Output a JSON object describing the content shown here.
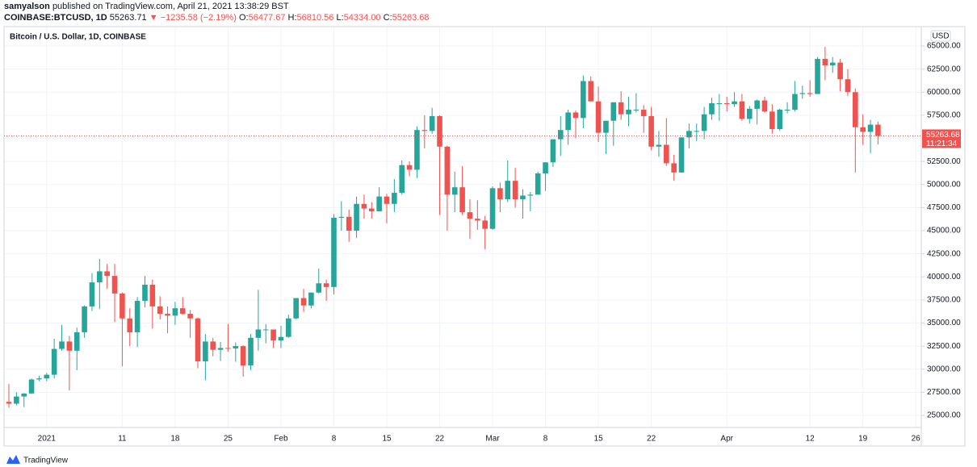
{
  "header": {
    "author": "samyalson",
    "published": "published on TradingView.com, April 21, 2021 13:38:29 BST",
    "symbol": "COINBASE:BTCUSD, 1D",
    "price": "55263.71",
    "change": "▼ −1235.58 (−2.19%)",
    "ohlc": [
      {
        "key": "O:",
        "value": "56477.67"
      },
      {
        "key": "H:",
        "value": "56810.56"
      },
      {
        "key": "L:",
        "value": "54334.00"
      },
      {
        "key": "C:",
        "value": "55263.68"
      }
    ]
  },
  "chart_data": {
    "type": "candlestick",
    "title": "Bitcoin / U.S. Dollar, 1D, COINBASE",
    "currency": "USD",
    "up_color": "#26a69a",
    "down_color": "#ef5350",
    "grid": true,
    "categories": [
      null,
      null,
      null,
      null,
      null,
      "2021",
      null,
      null,
      null,
      null,
      null,
      null,
      null,
      null,
      null,
      "11",
      null,
      null,
      null,
      null,
      null,
      null,
      "18",
      null,
      null,
      null,
      null,
      null,
      null,
      "25",
      null,
      null,
      null,
      null,
      null,
      null,
      "Feb",
      null,
      null,
      null,
      null,
      null,
      null,
      "8",
      null,
      null,
      null,
      null,
      null,
      null,
      "15",
      null,
      null,
      null,
      null,
      null,
      null,
      "22",
      null,
      null,
      null,
      null,
      null,
      null,
      "Mar",
      null,
      null,
      null,
      null,
      null,
      null,
      "8",
      null,
      null,
      null,
      null,
      null,
      null,
      "15",
      null,
      null,
      null,
      null,
      null,
      null,
      "22",
      null,
      null,
      null,
      null,
      null,
      null,
      null,
      null,
      null,
      "Apr",
      null,
      null,
      null,
      null,
      null,
      null,
      null,
      null,
      null,
      null,
      "12",
      null,
      null,
      null,
      null,
      null,
      null,
      "19",
      null,
      null,
      null,
      null,
      null,
      null,
      "26"
    ],
    "open": [
      26470,
      26270,
      27040,
      27370,
      28890,
      29000,
      29400,
      32200,
      33000,
      32000,
      34000,
      36800,
      39400,
      40600,
      40100,
      38200,
      35500,
      34000,
      37400,
      39150,
      36800,
      36000,
      35800,
      36600,
      36000,
      35500,
      30850,
      33000,
      32100,
      32300,
      32250,
      32500,
      30400,
      33400,
      34300,
      34300,
      33100,
      33500,
      35500,
      37700,
      36900,
      38300,
      39300,
      38900,
      46400,
      46500,
      45000,
      47900,
      47400,
      47100,
      48700,
      47900,
      49100,
      52100,
      51600,
      55900,
      55800,
      57400,
      54100,
      48900,
      49700,
      47000,
      46300,
      46100,
      45200,
      49600,
      48400,
      50400,
      48400,
      48800,
      48900,
      51200,
      52400,
      54900,
      55900,
      57800,
      57200,
      61200,
      59000,
      55600,
      56900,
      58900,
      57600,
      58100,
      58100,
      57400,
      54100,
      54300,
      52300,
      51300,
      55100,
      55800,
      55800,
      57600,
      58800,
      58800,
      58700,
      59000,
      57100,
      58200,
      59100,
      57900,
      56000,
      58100,
      58100,
      59800,
      59900,
      59800,
      63600,
      62900,
      63200,
      61400,
      60000,
      56200,
      55700,
      56477.67,
      null,
      null,
      null,
      null,
      null
    ],
    "high": [
      28400,
      27500,
      27400,
      28990,
      29300,
      29600,
      33300,
      34800,
      33600,
      34500,
      36900,
      40400,
      41950,
      41400,
      41400,
      38300,
      36600,
      37800,
      40100,
      39700,
      37900,
      36800,
      37300,
      37800,
      36400,
      35600,
      33800,
      33400,
      32950,
      34900,
      32900,
      32600,
      33800,
      38600,
      34900,
      34300,
      34700,
      35900,
      37700,
      38700,
      38300,
      40900,
      39700,
      46800,
      48200,
      47300,
      48700,
      48900,
      48100,
      49700,
      49000,
      50600,
      52600,
      52500,
      56300,
      57500,
      58300,
      57500,
      54200,
      51400,
      52000,
      48400,
      48300,
      46600,
      49800,
      50200,
      52600,
      51800,
      49500,
      49200,
      51400,
      52400,
      54900,
      57400,
      58100,
      58000,
      61800,
      61700,
      60600,
      56900,
      58900,
      60100,
      59500,
      59900,
      58600,
      58400,
      55800,
      57200,
      53200,
      55100,
      56600,
      56600,
      58400,
      59400,
      59800,
      59500,
      60000,
      59800,
      58500,
      59200,
      59500,
      58700,
      58200,
      58900,
      61200,
      60700,
      61300,
      63800,
      64900,
      63800,
      63600,
      62500,
      60400,
      57600,
      57000,
      56810.56,
      null,
      null,
      null,
      null,
      null
    ],
    "low": [
      25850,
      26100,
      25900,
      27320,
      28700,
      28700,
      29000,
      32000,
      27700,
      29900,
      33400,
      36300,
      36500,
      38700,
      35100,
      30300,
      32500,
      32400,
      36700,
      34400,
      35400,
      33900,
      34800,
      35900,
      33400,
      30100,
      28800,
      31400,
      30900,
      31900,
      30800,
      29200,
      29900,
      32000,
      32800,
      32300,
      32300,
      33400,
      35400,
      36200,
      36600,
      38200,
      37400,
      38100,
      45000,
      43800,
      44200,
      46300,
      46300,
      47100,
      45800,
      47000,
      48900,
      50900,
      50700,
      53900,
      55500,
      46700,
      45000,
      47000,
      46700,
      44100,
      45100,
      43000,
      45100,
      47000,
      48100,
      47500,
      46300,
      47100,
      48900,
      49300,
      51900,
      53100,
      54300,
      55000,
      56100,
      59000,
      54600,
      53300,
      54200,
      57000,
      56300,
      57800,
      55600,
      53700,
      53000,
      52000,
      50400,
      51300,
      53900,
      54700,
      54900,
      57000,
      56900,
      57900,
      58400,
      56900,
      56600,
      56500,
      57800,
      55500,
      55800,
      57700,
      57900,
      59300,
      59500,
      59800,
      61300,
      62100,
      60100,
      59600,
      51300,
      54300,
      53400,
      54334,
      null,
      null,
      null,
      null,
      null
    ],
    "close": [
      26270,
      27040,
      27370,
      28890,
      29000,
      29400,
      32200,
      33000,
      32000,
      34000,
      36800,
      39400,
      40600,
      40100,
      38200,
      35500,
      34000,
      37400,
      39150,
      36800,
      36000,
      35800,
      36600,
      36000,
      35500,
      30850,
      33000,
      32100,
      32300,
      32250,
      32500,
      30400,
      33400,
      34300,
      34300,
      33100,
      33500,
      35500,
      37700,
      36900,
      38300,
      39300,
      38900,
      46400,
      46500,
      45000,
      47900,
      47400,
      47100,
      48700,
      47900,
      49100,
      52100,
      51600,
      55900,
      55800,
      57400,
      54100,
      48900,
      49700,
      47000,
      46300,
      46100,
      45200,
      49600,
      48400,
      50400,
      48400,
      48800,
      48900,
      51200,
      52400,
      54900,
      55900,
      57800,
      57200,
      61200,
      59000,
      55600,
      56900,
      58900,
      57600,
      58100,
      58100,
      57400,
      54100,
      54300,
      52300,
      51300,
      55100,
      55800,
      55800,
      57600,
      58800,
      58800,
      58700,
      59000,
      57100,
      58200,
      59100,
      57900,
      56000,
      58100,
      58100,
      59800,
      59900,
      59800,
      63600,
      62900,
      63200,
      61400,
      60000,
      56200,
      55700,
      56480,
      55263.68,
      null,
      null,
      null,
      null,
      null
    ],
    "last_price": {
      "value": 55263.68,
      "label": "55263.68"
    },
    "countdown": "11:21:34",
    "ylim": [
      23690,
      67096
    ],
    "yticks": [
      {
        "value": 25000,
        "label": "25000.00"
      },
      {
        "value": 27500,
        "label": "27500.00"
      },
      {
        "value": 30000,
        "label": "30000.00"
      },
      {
        "value": 32500,
        "label": "32500.00"
      },
      {
        "value": 35000,
        "label": "35000.00"
      },
      {
        "value": 37500,
        "label": "37500.00"
      },
      {
        "value": 40000,
        "label": "40000.00"
      },
      {
        "value": 42500,
        "label": "42500.00"
      },
      {
        "value": 45000,
        "label": "45000.00"
      },
      {
        "value": 47500,
        "label": "47500.00"
      },
      {
        "value": 50000,
        "label": "50000.00"
      },
      {
        "value": 52500,
        "label": "52500.00"
      },
      {
        "value": 55000,
        "label": "55000.00"
      },
      {
        "value": 57500,
        "label": "57500.00"
      },
      {
        "value": 60000,
        "label": "60000.00"
      },
      {
        "value": 62500,
        "label": "62500.00"
      },
      {
        "value": 65000,
        "label": "65000.00"
      }
    ]
  },
  "footer": {
    "brand": "TradingView"
  }
}
